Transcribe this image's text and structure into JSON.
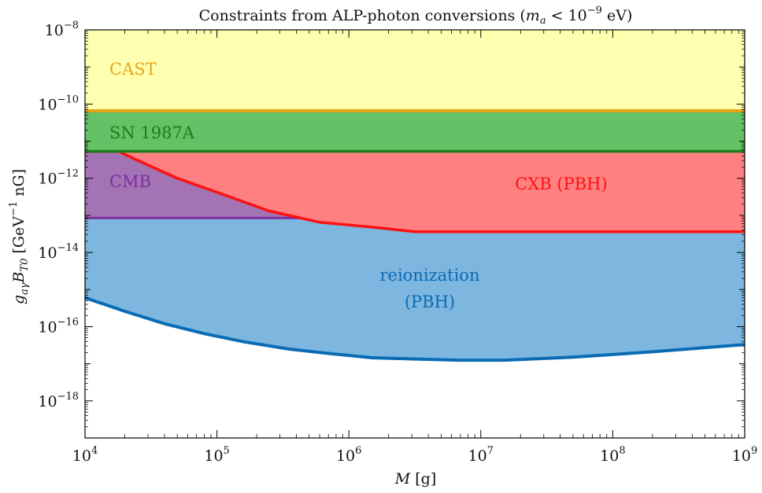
{
  "chart_data": {
    "type": "area",
    "title": "Constraints from ALP-photon conversions (m_a < 10^-9 eV)",
    "title_parts": {
      "prefix": "Constraints from ALP-photon conversions (",
      "var": "m",
      "sub": "a",
      "rel": " < 10",
      "exp": "−9",
      "suffix": " eV)"
    },
    "xlabel": "M [g]",
    "ylabel": "g_aγ B_T0 [GeV^-1 nG]",
    "xlabel_parts": {
      "var": "M",
      "unit": " [g]"
    },
    "ylabel_parts": {
      "var": "g",
      "var_sub": "aγ",
      "var2": "B",
      "var2_sub": "T0",
      "unit_pre": " [GeV",
      "unit_exp": "−1",
      "unit_post": " nG]"
    },
    "x_scale": "log",
    "y_scale": "log",
    "xlim": [
      10000,
      1000000000
    ],
    "ylim": [
      1e-19,
      1e-08
    ],
    "x_ticks": [
      {
        "base": "10",
        "exp": "4",
        "value": 10000.0
      },
      {
        "base": "10",
        "exp": "5",
        "value": 100000.0
      },
      {
        "base": "10",
        "exp": "6",
        "value": 1000000.0
      },
      {
        "base": "10",
        "exp": "7",
        "value": 10000000.0
      },
      {
        "base": "10",
        "exp": "8",
        "value": 100000000.0
      },
      {
        "base": "10",
        "exp": "9",
        "value": 1000000000.0
      }
    ],
    "y_ticks": [
      {
        "base": "10",
        "exp": "−8",
        "value": 1e-08
      },
      {
        "base": "10",
        "exp": "−10",
        "value": 1e-10
      },
      {
        "base": "10",
        "exp": "−12",
        "value": 1e-12
      },
      {
        "base": "10",
        "exp": "−14",
        "value": 1e-14
      },
      {
        "base": "10",
        "exp": "−16",
        "value": 1e-16
      },
      {
        "base": "10",
        "exp": "−18",
        "value": 1e-18
      }
    ],
    "regions": [
      {
        "name": "CAST",
        "label": "CAST",
        "fill": "#ffffb0",
        "edge": "#e8a317",
        "kind": "band",
        "lower": 6.6e-11,
        "upper": 1e-08
      },
      {
        "name": "SN 1987A",
        "label": "SN 1987A",
        "fill": "#64c165",
        "edge": "#1a7f1a",
        "kind": "band",
        "lower": 5.3e-12,
        "upper": 6.6e-11
      },
      {
        "name": "CXB (PBH)",
        "label": "CXB (PBH)",
        "fill": "#ff8080",
        "edge": "#ff1111",
        "kind": "curve",
        "upper": 5.3e-12,
        "x": [
          10000,
          18000,
          23000,
          50000,
          100000,
          250000,
          600000,
          1500000,
          3200000,
          10000000,
          100000000,
          1000000000
        ],
        "y": [
          5.3e-12,
          5.3e-12,
          3.5e-12,
          1e-12,
          4.2e-13,
          1.3e-13,
          6.5e-14,
          4.8e-14,
          3.6e-14,
          3.6e-14,
          3.6e-14,
          3.6e-14
        ]
      },
      {
        "name": "CMB",
        "label": "CMB",
        "fill": "#a373b4",
        "edge": "#7b2f9e",
        "kind": "band",
        "lower": 8.5e-14,
        "upper": 5.3e-12
      },
      {
        "name": "reionization (PBH)",
        "label_lines": [
          "reionization",
          "(PBH)"
        ],
        "fill": "#7db6de",
        "edge": "#0a6bb5",
        "kind": "curve",
        "upper": 8.5e-14,
        "x": [
          10000,
          20000,
          40000,
          80000,
          160000,
          350000,
          700000,
          1500000,
          3000000,
          7000000,
          15000000,
          50000000,
          200000000,
          1000000000
        ],
        "y": [
          6e-16,
          2.6e-16,
          1.2e-16,
          6.5e-17,
          3.9e-17,
          2.5e-17,
          1.9e-17,
          1.45e-17,
          1.35e-17,
          1.25e-17,
          1.25e-17,
          1.5e-17,
          2.1e-17,
          3.3e-17
        ]
      }
    ],
    "label_colors": {
      "CAST": "#e8a317",
      "SN 1987A": "#1a7f1a",
      "CMB": "#7b2f9e",
      "CXB (PBH)": "#ff1111",
      "reionization (PBH)": "#0a6bb5"
    },
    "grid": false,
    "legend": "none"
  }
}
